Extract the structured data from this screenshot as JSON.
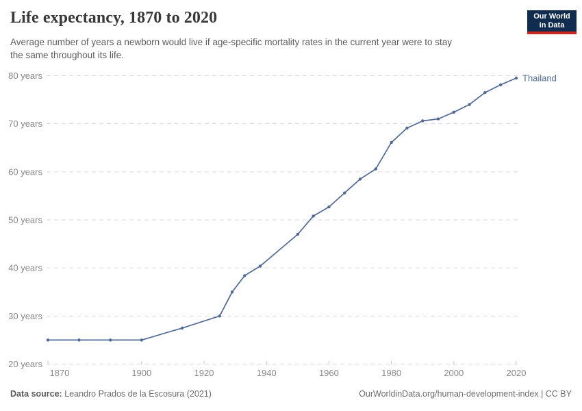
{
  "header": {
    "title": "Life expectancy, 1870 to 2020",
    "subtitle_lines": [
      "Average number of years a newborn would live if age-specific mortality rates in the current year were to stay",
      "the same throughout its life."
    ],
    "logo": {
      "line1": "Our World",
      "line2": "in Data",
      "bg_color": "#102d50",
      "bar_color": "#d0241f"
    }
  },
  "chart_data": {
    "type": "line",
    "title": "Life expectancy, 1870 to 2020",
    "xlabel": "",
    "ylabel": "",
    "xlim": [
      1870,
      2020
    ],
    "ylim": [
      20,
      80
    ],
    "xticks": [
      1870,
      1900,
      1920,
      1940,
      1960,
      1980,
      2000,
      2020
    ],
    "xtick_labels": [
      "1870",
      "1900",
      "1920",
      "1940",
      "1960",
      "1980",
      "2000",
      "2020"
    ],
    "yticks": [
      20,
      30,
      40,
      50,
      60,
      70,
      80
    ],
    "ytick_labels": [
      "20 years",
      "30 years",
      "40 years",
      "50 years",
      "60 years",
      "70 years",
      "80 years"
    ],
    "grid": "horizontal-dashed",
    "legend": "end-of-line-label",
    "series": [
      {
        "name": "Thailand",
        "color": "#4c6a9c",
        "points": [
          [
            1870,
            25.0
          ],
          [
            1880,
            25.0
          ],
          [
            1890,
            25.0
          ],
          [
            1900,
            25.0
          ],
          [
            1913,
            27.5
          ],
          [
            1925,
            30.0
          ],
          [
            1929,
            35.0
          ],
          [
            1933,
            38.4
          ],
          [
            1938,
            40.4
          ],
          [
            1950,
            47.0
          ],
          [
            1955,
            50.8
          ],
          [
            1960,
            52.7
          ],
          [
            1965,
            55.6
          ],
          [
            1970,
            58.5
          ],
          [
            1975,
            60.6
          ],
          [
            1980,
            66.1
          ],
          [
            1985,
            69.1
          ],
          [
            1990,
            70.6
          ],
          [
            1995,
            71.0
          ],
          [
            2000,
            72.4
          ],
          [
            2005,
            74.0
          ],
          [
            2010,
            76.5
          ],
          [
            2015,
            78.1
          ],
          [
            2020,
            79.5
          ]
        ]
      }
    ],
    "style": {
      "grid_color": "#dadada",
      "tick_color": "#c6c6c6",
      "axis_label_color": "#868686"
    }
  },
  "footer": {
    "source_label": "Data source:",
    "source_text": "Leandro Prados de la Escosura (2021)",
    "link_text": "OurWorldinData.org/human-development-index | CC BY"
  }
}
